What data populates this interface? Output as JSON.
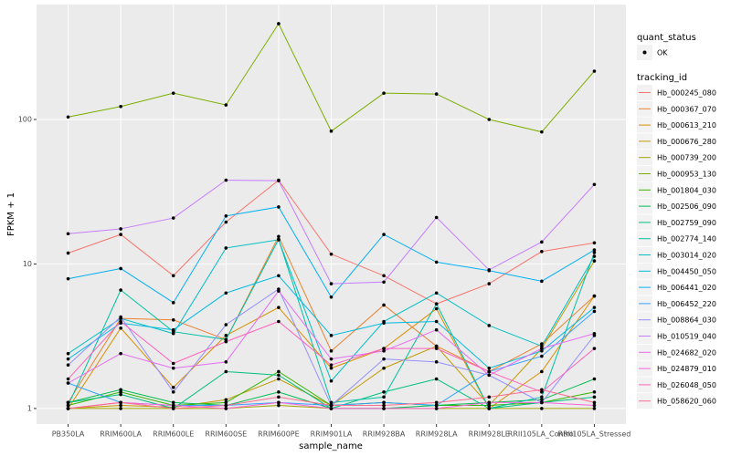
{
  "chart_data": {
    "type": "line",
    "log_y": true,
    "grid": true,
    "x_label": "sample_name",
    "y_label": "FPKM + 1",
    "shape_legend": {
      "title": "quant_status",
      "labels": [
        "OK"
      ]
    },
    "legend_title": "tracking_id",
    "categories": [
      "PB350LA",
      "RRIM600LA",
      "RRIM600LE",
      "RRIM600SE",
      "RRIM600PE",
      "RRIM901LA",
      "RRIM928BA",
      "RRIM928LA",
      "RRIM928LE",
      "RRII105LA_Control",
      "RRII105LA_Stressed"
    ],
    "ylim": [
      0.78,
      624
    ],
    "yticks": [
      1,
      10,
      100
    ],
    "series": [
      {
        "name": "Hb_000245_080",
        "color": "#F8766D",
        "values": [
          11.9,
          16,
          8.3,
          19.5,
          38,
          11.7,
          8.3,
          5.3,
          7.3,
          12.2,
          14
        ]
      },
      {
        "name": "Hb_000367_070",
        "color": "#EA8331",
        "values": [
          1.1,
          4.2,
          4.1,
          3,
          15.5,
          2.5,
          5.2,
          2.7,
          1.8,
          2.8,
          6
        ]
      },
      {
        "name": "Hb_000613_210",
        "color": "#D89000",
        "values": [
          1.0,
          3.6,
          1.4,
          3.2,
          5,
          1.9,
          2.6,
          4.9,
          1.0,
          1.8,
          6
        ]
      },
      {
        "name": "Hb_000676_280",
        "color": "#C09B00",
        "values": [
          1,
          1.05,
          1.02,
          1.15,
          1.6,
          1.05,
          1.9,
          2.7,
          1.05,
          2.6,
          10.5
        ]
      },
      {
        "name": "Hb_000739_200",
        "color": "#A3A500",
        "values": [
          1.0,
          1.0,
          1.0,
          1.0,
          1.05,
          1.0,
          1.0,
          1.0,
          1.0,
          1.0,
          1.0
        ]
      },
      {
        "name": "Hb_000953_130",
        "color": "#7CAE00",
        "values": [
          104,
          123,
          152,
          126,
          460,
          83,
          152,
          150,
          100,
          82,
          216
        ]
      },
      {
        "name": "Hb_001804_030",
        "color": "#39B600",
        "values": [
          1.05,
          1.3,
          1.05,
          1.1,
          1.8,
          1.05,
          1.1,
          1.05,
          1.05,
          1.1,
          1.3
        ]
      },
      {
        "name": "Hb_002506_090",
        "color": "#00BB4E",
        "values": [
          1.1,
          1.35,
          1.1,
          1.05,
          1.3,
          1.0,
          1.0,
          1.05,
          1.1,
          1.15,
          1.6
        ]
      },
      {
        "name": "Hb_002759_090",
        "color": "#00BF7D",
        "values": [
          1.1,
          1.25,
          1.0,
          1.8,
          1.7,
          1.0,
          1.3,
          1.6,
          1.0,
          1.1,
          1.2
        ]
      },
      {
        "name": "Hb_002774_140",
        "color": "#00C1A3",
        "values": [
          1.05,
          6.6,
          3.4,
          3,
          14.8,
          1.1,
          1.2,
          5.3,
          1.0,
          1.2,
          12
        ]
      },
      {
        "name": "Hb_003014_020",
        "color": "#00BFC4",
        "values": [
          2.4,
          4.2,
          3.3,
          12.9,
          14.7,
          1.55,
          4,
          6.3,
          3.75,
          2.7,
          11.3
        ]
      },
      {
        "name": "Hb_004450_050",
        "color": "#00BAE0",
        "values": [
          2.2,
          3.9,
          3.5,
          6.3,
          8.3,
          3.2,
          3.9,
          4,
          1.9,
          2.5,
          5
        ]
      },
      {
        "name": "Hb_006441_020",
        "color": "#00B0F6",
        "values": [
          7.9,
          9.3,
          5.4,
          21.5,
          24.8,
          5.9,
          16,
          10.3,
          9,
          7.6,
          12.5
        ]
      },
      {
        "name": "Hb_006452_220",
        "color": "#35A2FF",
        "values": [
          1.5,
          1.1,
          1.05,
          1.05,
          1.1,
          1.05,
          1.1,
          1.05,
          1.8,
          2.3,
          4.7
        ]
      },
      {
        "name": "Hb_008864_030",
        "color": "#9590FF",
        "values": [
          2.0,
          4.3,
          1.3,
          3.8,
          6.7,
          1.05,
          2.2,
          2.1,
          1.7,
          1.1,
          3.2
        ]
      },
      {
        "name": "Hb_010519_040",
        "color": "#C77CFF",
        "values": [
          16.2,
          17.5,
          20.8,
          38,
          37.7,
          7.3,
          7.5,
          21,
          9.1,
          14.2,
          35.5
        ]
      },
      {
        "name": "Hb_024682_020",
        "color": "#E76BF3",
        "values": [
          1.5,
          2.4,
          1.9,
          2.1,
          6.5,
          2.2,
          2.5,
          3.5,
          1.7,
          2.6,
          3.3
        ]
      },
      {
        "name": "Hb_024879_010",
        "color": "#FA62DB",
        "values": [
          1.0,
          1.1,
          1.05,
          1.0,
          1.1,
          1.0,
          1.0,
          1.0,
          1.1,
          1.1,
          1.05
        ]
      },
      {
        "name": "Hb_026048_050",
        "color": "#FF62BC",
        "values": [
          1.6,
          4,
          2.05,
          2.9,
          4,
          2,
          2.6,
          2.6,
          1.8,
          1.3,
          2.6
        ]
      },
      {
        "name": "Hb_058620_060",
        "color": "#FF6C91",
        "values": [
          1.0,
          1.1,
          1.0,
          1.05,
          1.2,
          1.05,
          1.05,
          1.1,
          1.2,
          1.35,
          1.1
        ]
      }
    ]
  }
}
